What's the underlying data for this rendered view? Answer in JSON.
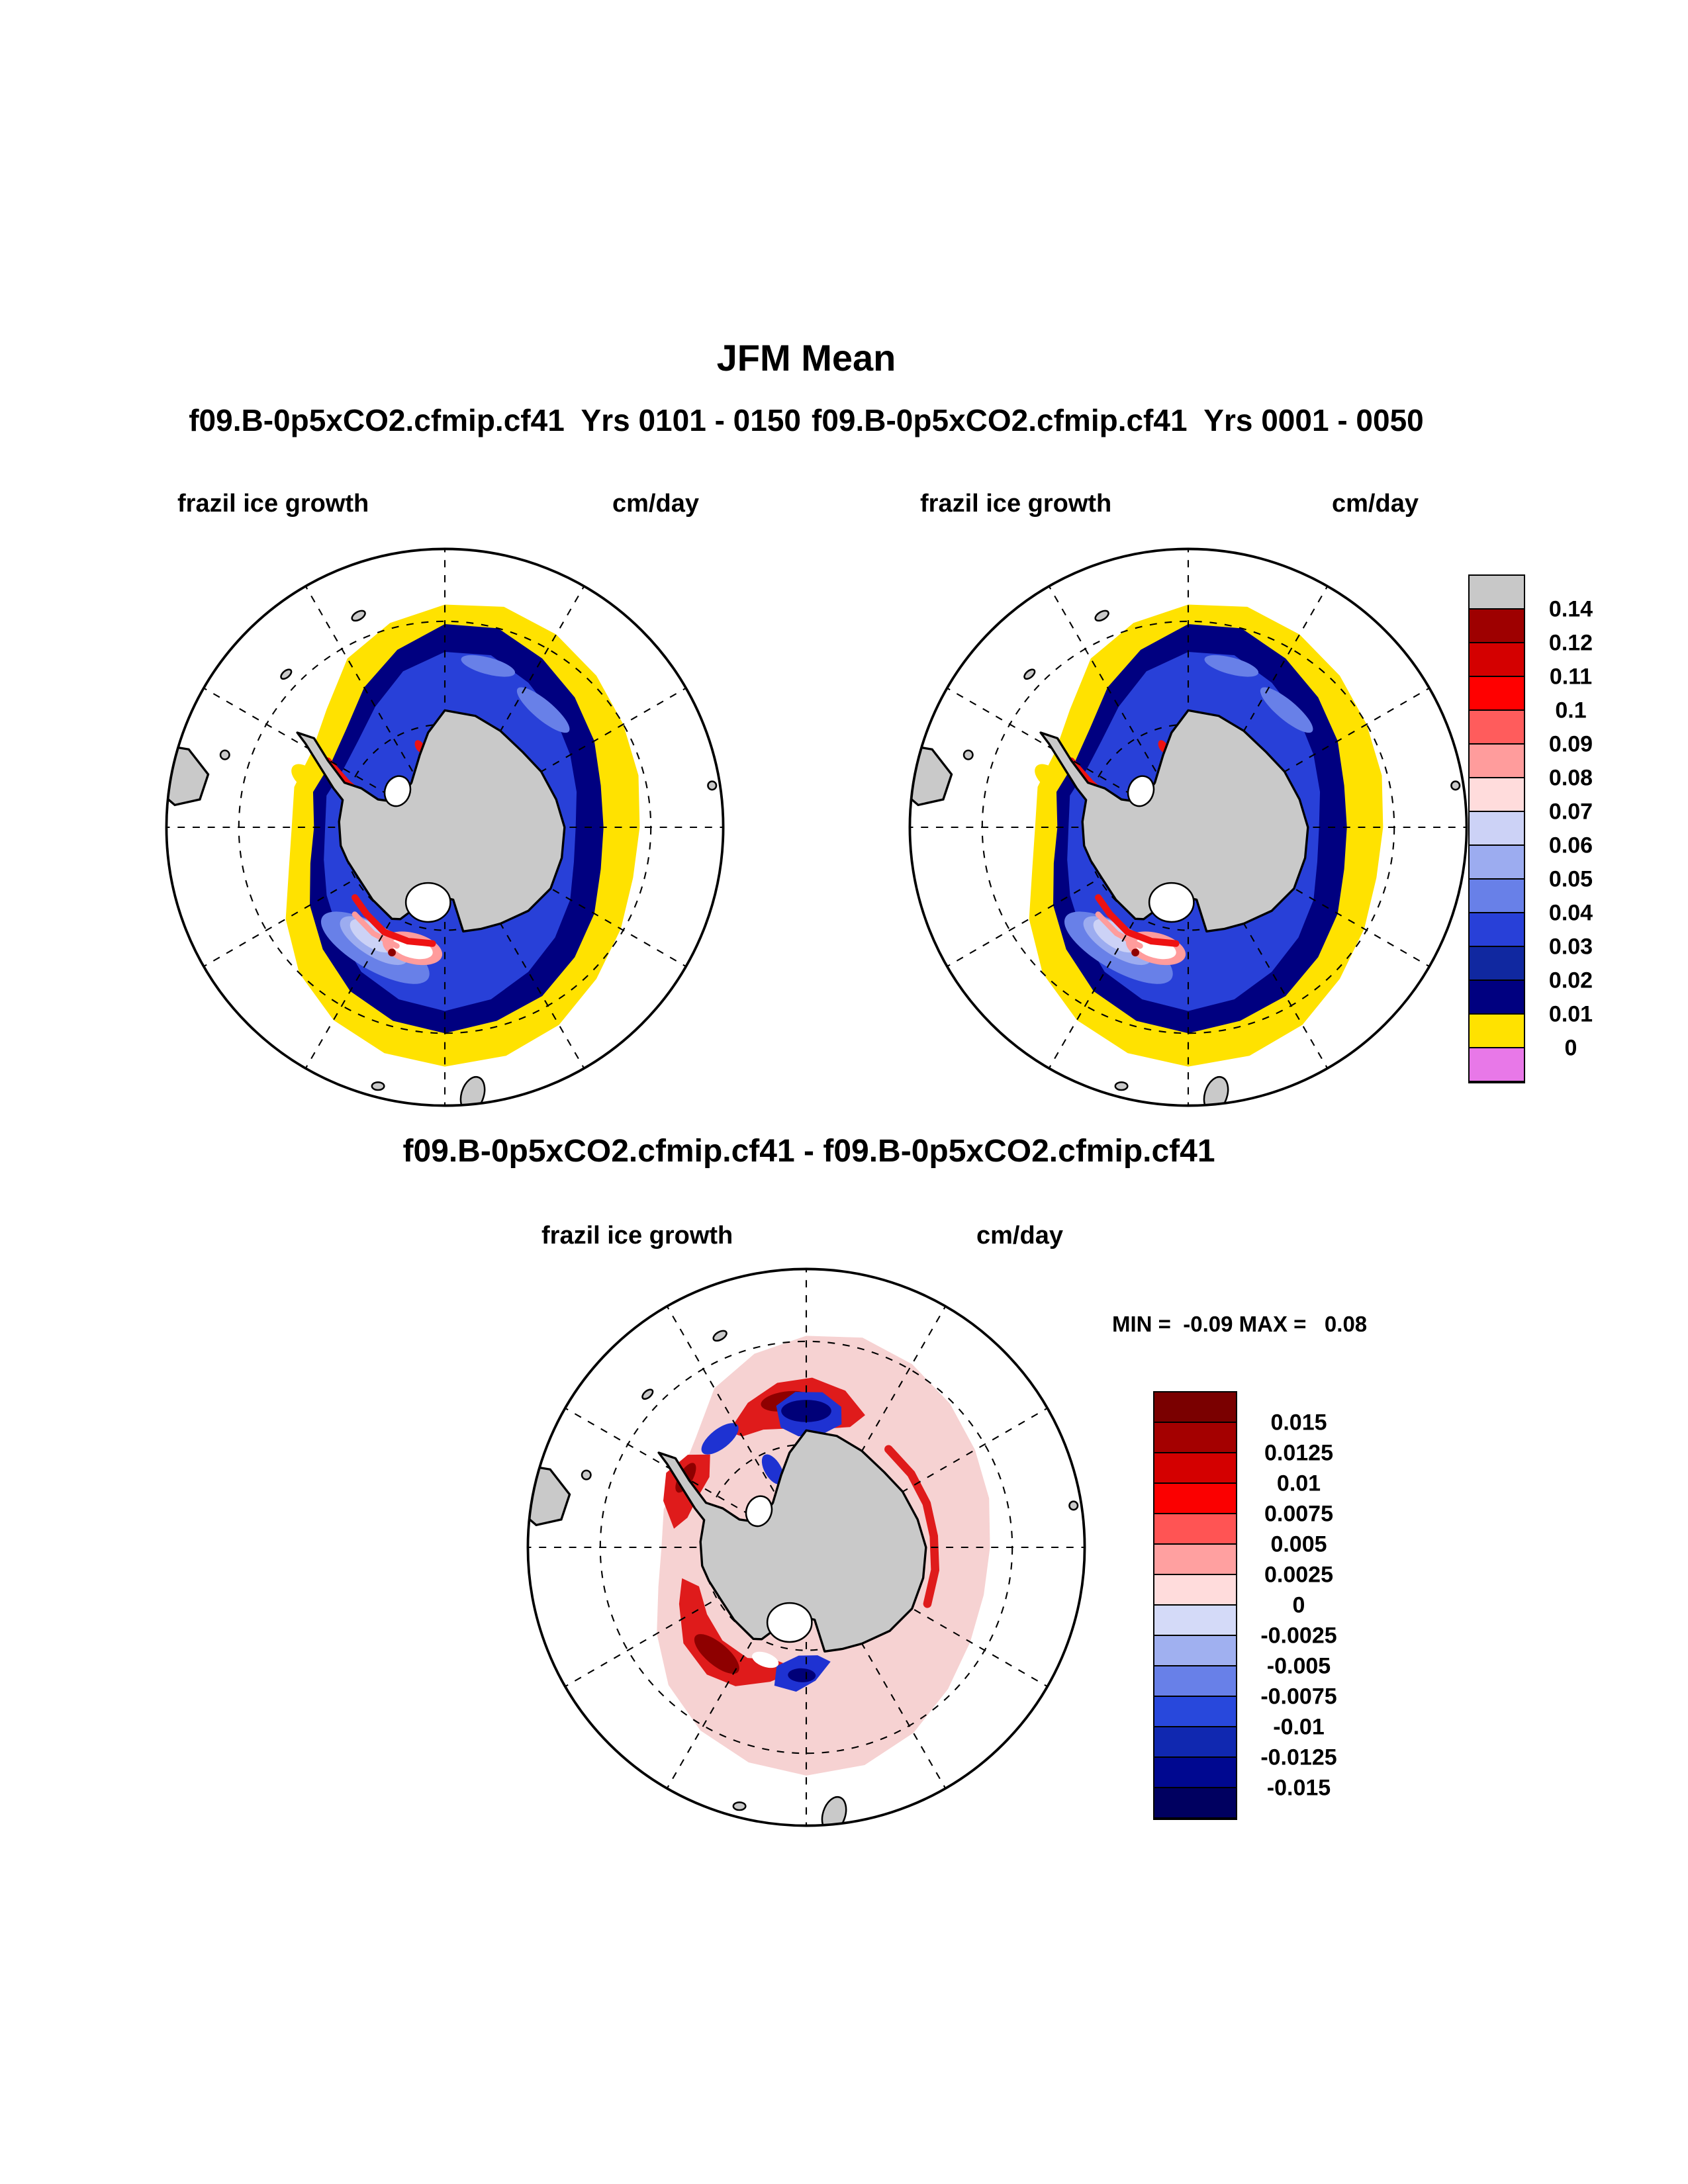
{
  "page": {
    "title": "JFM Mean",
    "subtitle_left": "f09.B-0p5xCO2.cfmip.cf41  Yrs 0101 - 0150",
    "subtitle_right": "f09.B-0p5xCO2.cfmip.cf41  Yrs 0001 - 0050"
  },
  "panels": {
    "top_left": {
      "field": "frazil ice growth",
      "units": "cm/day"
    },
    "top_right": {
      "field": "frazil ice growth",
      "units": "cm/day"
    },
    "difference": {
      "title": "f09.B-0p5xCO2.cfmip.cf41 - f09.B-0p5xCO2.cfmip.cf41",
      "field": "frazil ice growth",
      "units": "cm/day",
      "stats_text": "MIN =  -0.09 MAX =   0.08"
    }
  },
  "colorbars": {
    "mean": {
      "labels_top_to_bottom": [
        "0.14",
        "0.12",
        "0.11",
        "0.1",
        "0.09",
        "0.08",
        "0.07",
        "0.06",
        "0.05",
        "0.04",
        "0.03",
        "0.02",
        "0.01",
        "0"
      ],
      "colors_top_to_bottom": [
        "#c8c8c8",
        "#9e0000",
        "#d40000",
        "#ff0000",
        "#ff5c5c",
        "#ff9c9c",
        "#ffdcdc",
        "#ccd2f6",
        "#9cacf0",
        "#6880e8",
        "#2840d8",
        "#1028a0",
        "#000080",
        "#ffe200",
        "#e878e8"
      ]
    },
    "difference": {
      "labels_top_to_bottom": [
        "0.015",
        "0.0125",
        "0.01",
        "0.0075",
        "0.005",
        "0.0025",
        "0",
        "-0.0025",
        "-0.005",
        "-0.0075",
        "-0.01",
        "-0.0125",
        "-0.015"
      ],
      "colors_top_to_bottom": [
        "#7a0000",
        "#a40000",
        "#d40000",
        "#fb0000",
        "#ff5454",
        "#ffa0a0",
        "#ffdcdc",
        "#d4daf8",
        "#a0b0f0",
        "#6880e8",
        "#2848dc",
        "#1028b0",
        "#000890",
        "#000060"
      ]
    }
  },
  "map_colors": {
    "land": "#c9c9c9",
    "ocean": "#ffffff",
    "yellow": "#ffe200",
    "navy": "#000080",
    "blue": "#2840d8",
    "medium_blue": "#6880e8",
    "light_blue": "#9cacf0",
    "pale_blue": "#ccd2f6",
    "pink": "#ff9c9c",
    "red": "#ee1212",
    "dark_red": "#8e0000",
    "diff_pale_pink": "#f6d2d2",
    "diff_red": "#df1b1b",
    "diff_blue": "#1e32d2",
    "diff_navy": "#000078"
  },
  "chart_data": [
    {
      "type": "heatmap",
      "panel": "top-left",
      "title": "JFM Mean",
      "dataset": "f09.B-0p5xCO2.cfmip.cf41",
      "years": "0101 - 0150",
      "variable": "frazil ice growth",
      "units": "cm/day",
      "projection": "south polar stereographic (Antarctica)",
      "levels": [
        0,
        0.01,
        0.02,
        0.03,
        0.04,
        0.05,
        0.06,
        0.07,
        0.08,
        0.09,
        0.1,
        0.11,
        0.12,
        0.14
      ],
      "legend_position": "right",
      "grid": "dashed lat-lon graticule, meridians every 30 deg"
    },
    {
      "type": "heatmap",
      "panel": "top-right",
      "title": "JFM Mean",
      "dataset": "f09.B-0p5xCO2.cfmip.cf41",
      "years": "0001 - 0050",
      "variable": "frazil ice growth",
      "units": "cm/day",
      "projection": "south polar stereographic (Antarctica)",
      "levels": [
        0,
        0.01,
        0.02,
        0.03,
        0.04,
        0.05,
        0.06,
        0.07,
        0.08,
        0.09,
        0.1,
        0.11,
        0.12,
        0.14
      ],
      "legend_position": "right",
      "grid": "dashed lat-lon graticule, meridians every 30 deg"
    },
    {
      "type": "heatmap",
      "panel": "bottom-difference",
      "title": "f09.B-0p5xCO2.cfmip.cf41 - f09.B-0p5xCO2.cfmip.cf41",
      "variable": "frazil ice growth",
      "units": "cm/day",
      "projection": "south polar stereographic (Antarctica)",
      "min": -0.09,
      "max": 0.08,
      "levels": [
        -0.015,
        -0.0125,
        -0.01,
        -0.0075,
        -0.005,
        -0.0025,
        0,
        0.0025,
        0.005,
        0.0075,
        0.01,
        0.0125,
        0.015
      ],
      "legend_position": "right",
      "grid": "dashed lat-lon graticule, meridians every 30 deg"
    }
  ]
}
